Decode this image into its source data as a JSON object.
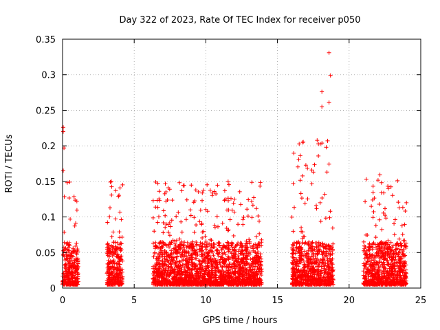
{
  "chart_data": {
    "type": "scatter",
    "title": "Day 322 of 2023, Rate Of TEC Index for receiver p050",
    "xlabel": "GPS time / hours",
    "ylabel": "ROTI / TECUs",
    "xlim": [
      0,
      25
    ],
    "ylim": [
      0,
      0.35
    ],
    "xticks": [
      0,
      5,
      10,
      15,
      20,
      25
    ],
    "xtick_labels": [
      "0",
      "5",
      "10",
      "15",
      "20",
      "25"
    ],
    "yticks": [
      0,
      0.05,
      0.1,
      0.15,
      0.2,
      0.25,
      0.3,
      0.35
    ],
    "ytick_labels": [
      "0",
      "0.05",
      "0.1",
      "0.15",
      "0.2",
      "0.25",
      "0.3",
      "0.35"
    ],
    "grid": true,
    "marker": "+",
    "color": "#ff0000",
    "series": [
      {
        "name": "ROTI",
        "segments": [
          {
            "x_range": [
              0.0,
              1.1
            ],
            "typical_max": 0.15,
            "description": "dense cluster"
          },
          {
            "x_range": [
              3.1,
              4.2
            ],
            "typical_max": 0.15,
            "description": "dense cluster"
          },
          {
            "x_range": [
              6.3,
              13.9
            ],
            "typical_max": 0.15,
            "description": "dense cluster"
          },
          {
            "x_range": [
              16.0,
              18.9
            ],
            "typical_max": 0.21,
            "description": "dense cluster with peaks"
          },
          {
            "x_range": [
              21.0,
              24.0
            ],
            "typical_max": 0.16,
            "description": "dense cluster"
          }
        ],
        "notable_points": [
          {
            "x": 0.05,
            "y": 0.226
          },
          {
            "x": 0.05,
            "y": 0.22
          },
          {
            "x": 0.1,
            "y": 0.197
          },
          {
            "x": 0.05,
            "y": 0.165
          },
          {
            "x": 18.6,
            "y": 0.331
          },
          {
            "x": 18.7,
            "y": 0.299
          },
          {
            "x": 18.1,
            "y": 0.276
          },
          {
            "x": 18.6,
            "y": 0.261
          },
          {
            "x": 18.1,
            "y": 0.255
          },
          {
            "x": 18.5,
            "y": 0.207
          },
          {
            "x": 18.4,
            "y": 0.198
          },
          {
            "x": 21.2,
            "y": 0.153
          },
          {
            "x": 3.4,
            "y": 0.15
          },
          {
            "x": 6.5,
            "y": 0.149
          },
          {
            "x": 16.1,
            "y": 0.147
          },
          {
            "x": 0.5,
            "y": 0.149
          },
          {
            "x": 9.3,
            "y": 0.138
          },
          {
            "x": 12.0,
            "y": 0.125
          },
          {
            "x": 22.1,
            "y": 0.118
          },
          {
            "x": 24.0,
            "y": 0.12
          },
          {
            "x": 23.5,
            "y": 0.113
          },
          {
            "x": 1.0,
            "y": 0.122
          },
          {
            "x": 3.9,
            "y": 0.129
          },
          {
            "x": 17.5,
            "y": 0.163
          }
        ]
      }
    ]
  }
}
